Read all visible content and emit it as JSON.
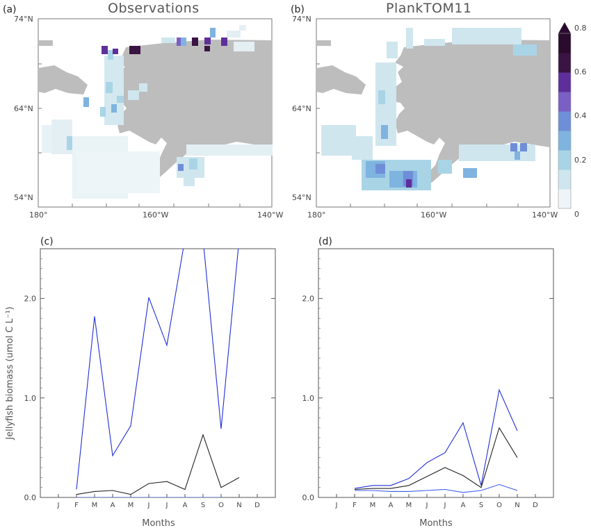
{
  "panels": {
    "a": {
      "label": "(a)",
      "title": "Observations"
    },
    "b": {
      "label": "(b)",
      "title": "PlankTOM11"
    },
    "c": {
      "label": "(c)"
    },
    "d": {
      "label": "(d)"
    }
  },
  "map_axes": {
    "lat_ticks": [
      "74°N",
      "64°N",
      "54°N"
    ],
    "lon_ticks": [
      "180°",
      "160°W",
      "140°W"
    ]
  },
  "colorbar": {
    "ticks": [
      "0.8",
      "0.6",
      "0.4",
      "0.2",
      "0"
    ],
    "colors": [
      "#eef4f7",
      "#cfe6ee",
      "#a9d4e6",
      "#7fb3e0",
      "#6f8ed8",
      "#7a5fc4",
      "#5e2f9a",
      "#3a1442",
      "#2a0b2e"
    ]
  },
  "line_axes": {
    "ylabel": "Jellyfish biomass (umol C L⁻¹)",
    "xlabel": "Months",
    "y_ticks": [
      "0.0",
      "1.0",
      "2.0"
    ],
    "months": [
      "J",
      "F",
      "M",
      "A",
      "M",
      "J",
      "J",
      "A",
      "S",
      "O",
      "N",
      "D"
    ]
  },
  "chart_data": [
    {
      "type": "heatmap",
      "panel": "a",
      "title": "Observations",
      "xlabel": "",
      "ylabel": "",
      "xlim": [
        180,
        140
      ],
      "ylim": [
        54,
        74
      ],
      "x_ticks": [
        "180°",
        "160°W",
        "140°W"
      ],
      "y_ticks": [
        "74°N",
        "64°N",
        "54°N"
      ],
      "colorbar_range": [
        0,
        0.8
      ]
    },
    {
      "type": "heatmap",
      "panel": "b",
      "title": "PlankTOM11",
      "xlabel": "",
      "ylabel": "",
      "xlim": [
        180,
        140
      ],
      "ylim": [
        54,
        74
      ],
      "x_ticks": [
        "180°",
        "160°W",
        "140°W"
      ],
      "y_ticks": [
        "74°N",
        "64°N",
        "54°N"
      ],
      "colorbar_range": [
        0,
        0.8
      ]
    },
    {
      "type": "line",
      "panel": "c",
      "title": "",
      "xlabel": "Months",
      "ylabel": "Jellyfish biomass (umol C L⁻¹)",
      "categories": [
        "J",
        "F",
        "M",
        "A",
        "M",
        "J",
        "J",
        "A",
        "S",
        "O",
        "N",
        "D"
      ],
      "ylim": [
        0,
        2.5
      ],
      "series": [
        {
          "color": "#1f2fd6",
          "values": [
            null,
            0.08,
            1.82,
            0.42,
            0.72,
            2.01,
            1.53,
            2.6,
            2.6,
            0.69,
            2.6,
            null
          ]
        },
        {
          "color": "#222222",
          "values": [
            null,
            0.03,
            0.06,
            0.07,
            0.03,
            0.14,
            0.16,
            0.08,
            0.63,
            0.1,
            0.2,
            null
          ]
        },
        {
          "color": "#3b5bf0",
          "values": [
            null,
            0.0,
            0.0,
            0.0,
            0.0,
            0.0,
            0.0,
            0.0,
            0.0,
            0.0,
            null,
            null
          ]
        }
      ]
    },
    {
      "type": "line",
      "panel": "d",
      "title": "",
      "xlabel": "Months",
      "ylabel": "",
      "categories": [
        "J",
        "F",
        "M",
        "A",
        "M",
        "J",
        "J",
        "A",
        "S",
        "O",
        "N",
        "D"
      ],
      "ylim": [
        0,
        2.5
      ],
      "series": [
        {
          "color": "#1f2fd6",
          "values": [
            null,
            0.09,
            0.12,
            0.12,
            0.19,
            0.35,
            0.45,
            0.75,
            0.12,
            1.08,
            0.67,
            null
          ]
        },
        {
          "color": "#222222",
          "values": [
            null,
            0.08,
            0.09,
            0.09,
            0.12,
            0.21,
            0.3,
            0.22,
            0.1,
            0.7,
            0.4,
            null
          ]
        },
        {
          "color": "#3b5bf0",
          "values": [
            null,
            0.07,
            0.07,
            0.06,
            0.06,
            0.07,
            0.08,
            0.05,
            0.07,
            0.13,
            0.07,
            null
          ]
        }
      ]
    }
  ]
}
